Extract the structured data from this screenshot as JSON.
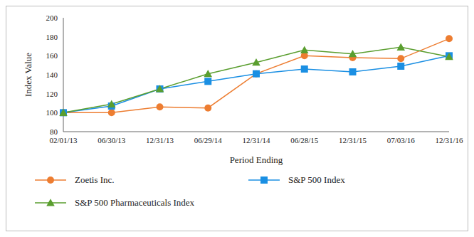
{
  "chart_data": {
    "type": "line",
    "x_label": "Period Ending",
    "y_label": "Index Value",
    "categories": [
      "02/01/13",
      "06/30/13",
      "12/31/13",
      "06/29/14",
      "12/31/14",
      "06/28/15",
      "12/31/15",
      "07/03/16",
      "12/31/16"
    ],
    "series": [
      {
        "name": "Zoetis Inc.",
        "color": "#ed7d31",
        "marker": "circle",
        "values": [
          100,
          100,
          106,
          105,
          141,
          160,
          158,
          157,
          178
        ]
      },
      {
        "name": "S&P 500 Index",
        "color": "#1a8fe3",
        "marker": "square",
        "values": [
          100,
          107,
          125,
          133,
          141,
          146,
          143,
          149,
          160
        ]
      },
      {
        "name": "S&P 500 Pharmaceuticals Index",
        "color": "#5a9e2f",
        "marker": "triangle",
        "values": [
          100,
          109,
          125,
          141,
          153,
          166,
          162,
          169,
          159
        ]
      }
    ],
    "ylim": [
      80,
      200
    ],
    "yticks": [
      80,
      100,
      120,
      140,
      160,
      180,
      200
    ],
    "grid": false,
    "legend": "bottom"
  }
}
